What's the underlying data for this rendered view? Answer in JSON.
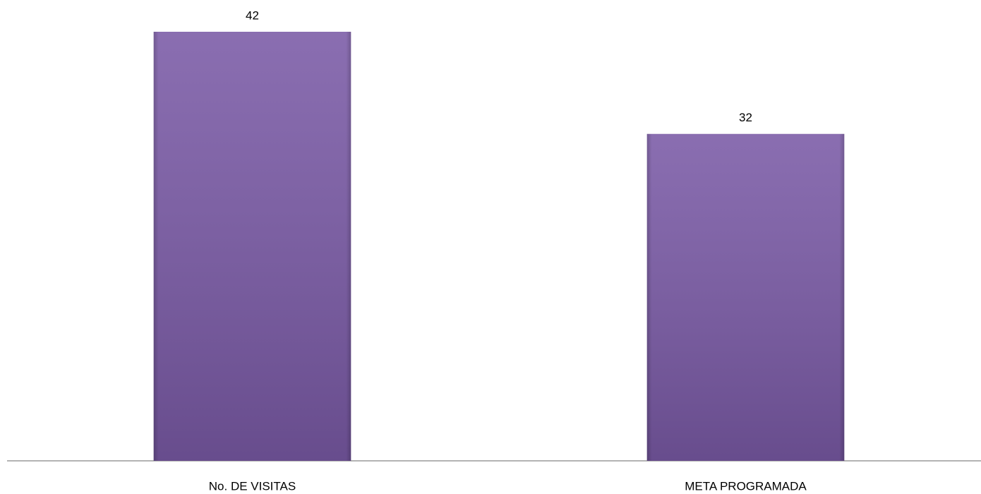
{
  "chart_data": {
    "type": "bar",
    "categories": [
      "No. DE VISITAS",
      "META PROGRAMADA"
    ],
    "values": [
      42,
      32
    ],
    "color": "#7a5aa6"
  }
}
